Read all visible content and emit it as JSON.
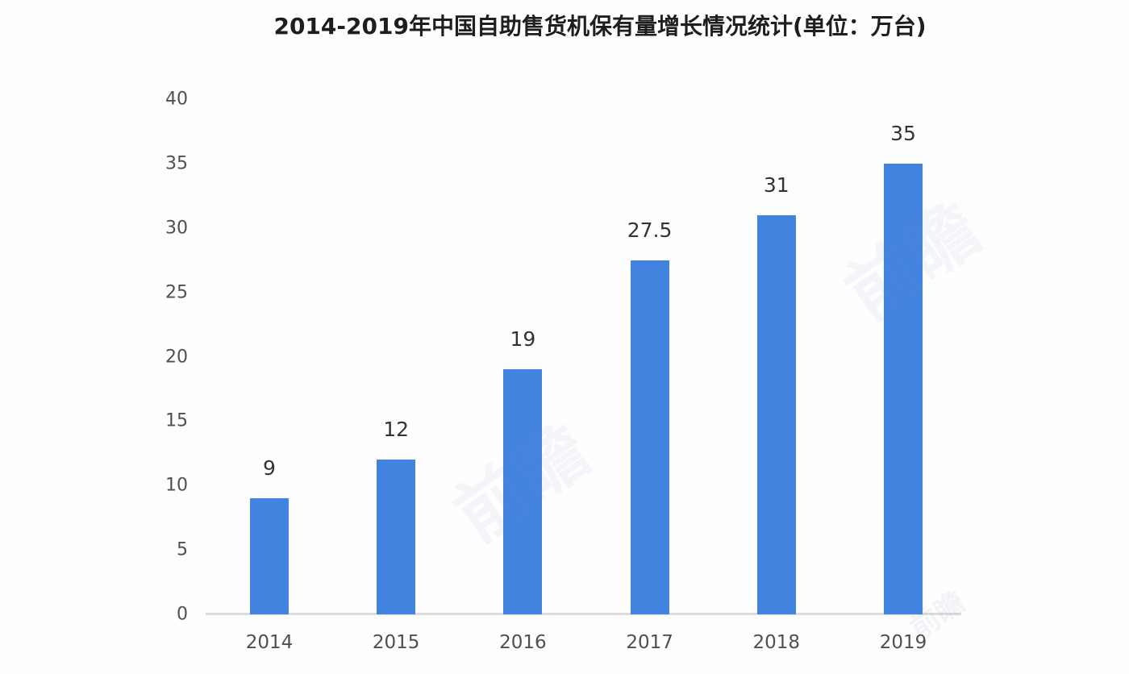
{
  "title": "2014-2019年中国自助售货机保有量增长情况统计(单位：万台)",
  "chart_data": {
    "type": "bar",
    "title": "2014-2019年中国自助售货机保有量增长情况统计(单位：万台)",
    "categories": [
      "2014",
      "2015",
      "2016",
      "2017",
      "2018",
      "2019"
    ],
    "values": [
      9,
      12,
      19,
      27.5,
      31,
      35
    ],
    "value_labels": [
      "9",
      "12",
      "19",
      "27.5",
      "31",
      "35"
    ],
    "xlabel": "",
    "ylabel": "",
    "ylim": [
      0,
      40
    ],
    "yticks": [
      0,
      5,
      10,
      15,
      20,
      25,
      30,
      35,
      40
    ],
    "grid": false,
    "legend": "none",
    "unit": "万台",
    "bar_color": "#4283e0",
    "baseline_color": "#dcdcdc",
    "title_color": "#1e1e1e",
    "tick_label_color": "#4f4f4f",
    "value_label_color": "#333333",
    "background_color": "#fefefe"
  },
  "watermark": {
    "text": "前瞻"
  }
}
